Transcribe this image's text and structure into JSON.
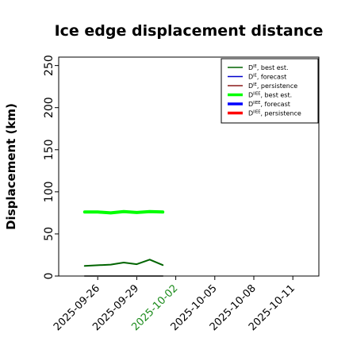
{
  "chart_data": {
    "type": "line",
    "title": "Ice edge displacement distance",
    "ylabel": "Displacement (km)",
    "xlabel": "",
    "ylim": [
      0,
      260
    ],
    "yticks": [
      0,
      50,
      100,
      150,
      200,
      250
    ],
    "xlim": [
      "2025-09-23",
      "2025-10-13"
    ],
    "xticks": [
      {
        "date": "2025-09-26",
        "label": "2025-09-26",
        "color": "#000000"
      },
      {
        "date": "2025-09-29",
        "label": "2025-09-29",
        "color": "#000000"
      },
      {
        "date": "2025-10-02",
        "label": "2025-10-02",
        "color": "#1a8a1a"
      },
      {
        "date": "2025-10-05",
        "label": "2025-10-05",
        "color": "#000000"
      },
      {
        "date": "2025-10-08",
        "label": "2025-10-08",
        "color": "#000000"
      },
      {
        "date": "2025-10-11",
        "label": "2025-10-11",
        "color": "#000000"
      }
    ],
    "grid": false,
    "legend_position": "top-right",
    "series": [
      {
        "name": "D^IE, best est.",
        "legend_main": "D",
        "legend_sup": "IE",
        "legend_rest": ", best est.",
        "color": "#006400",
        "weight": "thin",
        "plotted": true,
        "x": [
          "2025-09-25",
          "2025-09-26",
          "2025-09-27",
          "2025-09-28",
          "2025-09-29",
          "2025-09-30",
          "2025-10-01"
        ],
        "y": [
          12,
          12.8,
          13.6,
          16,
          14,
          19.5,
          13
        ]
      },
      {
        "name": "D^IE, forecast",
        "legend_main": "D",
        "legend_sup": "IE",
        "legend_rest": ", forecast",
        "color": "#0000cc",
        "weight": "thin",
        "plotted": false,
        "x": [],
        "y": []
      },
      {
        "name": "D^IE, persistence",
        "legend_main": "D",
        "legend_sup": "IE",
        "legend_rest": ", persistence",
        "color": "#8b1a1a",
        "weight": "thin",
        "plotted": false,
        "x": [],
        "y": []
      },
      {
        "name": "D^IIEE, best est.",
        "legend_main": "D",
        "legend_sup": "IIEE",
        "legend_rest": ", best est.",
        "color": "#00ff00",
        "weight": "thick",
        "plotted": true,
        "x": [
          "2025-09-25",
          "2025-09-26",
          "2025-09-27",
          "2025-09-28",
          "2025-09-29",
          "2025-09-30",
          "2025-10-01"
        ],
        "y": [
          76,
          76,
          75,
          76.5,
          75.5,
          76.5,
          76
        ]
      },
      {
        "name": "D^IIEE, forecast",
        "legend_main": "D",
        "legend_sup": "IIEE",
        "legend_rest": ", forecast",
        "color": "#0000ff",
        "weight": "thick",
        "plotted": false,
        "x": [],
        "y": []
      },
      {
        "name": "D^IIEE, persistence",
        "legend_main": "D",
        "legend_sup": "IIEE",
        "legend_rest": ", persistence",
        "color": "#ff0000",
        "weight": "thick",
        "plotted": false,
        "x": [],
        "y": []
      },
      {
        "name": "",
        "legend_main": "",
        "legend_sup": "",
        "legend_rest": "",
        "color": "#808080",
        "weight": "thin",
        "plotted": true,
        "in_legend": false,
        "x": [
          "2025-09-25",
          "2025-10-01"
        ],
        "y": [
          0,
          0
        ]
      }
    ]
  }
}
